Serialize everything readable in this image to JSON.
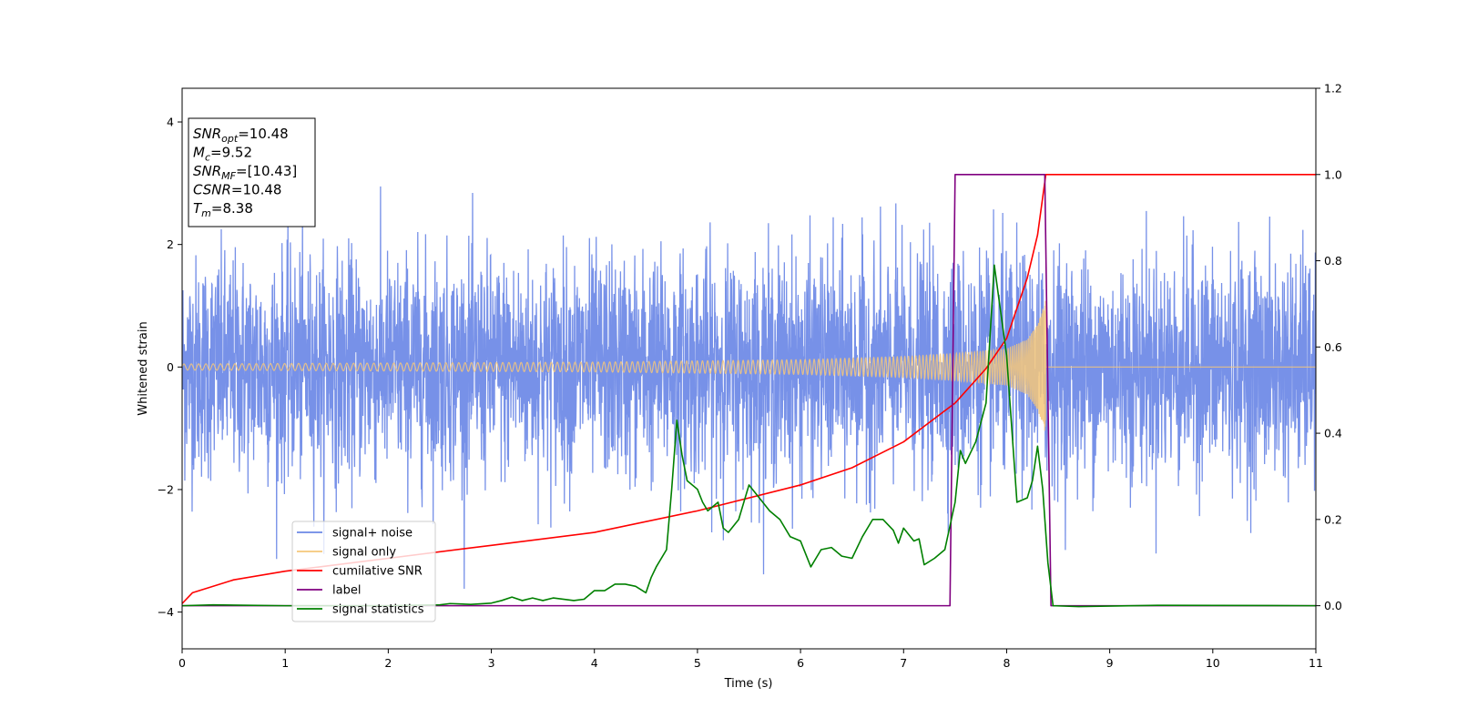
{
  "chart_data": {
    "type": "line",
    "xlabel": "Time (s)",
    "ylabel": "Whitened strain",
    "xlim": [
      0,
      11
    ],
    "ylim": [
      -4.6,
      4.55
    ],
    "y2lim": [
      -0.1,
      1.2
    ],
    "xticks": [
      0,
      1,
      2,
      3,
      4,
      5,
      6,
      7,
      8,
      9,
      10,
      11
    ],
    "yticks": [
      -4,
      -2,
      0,
      2,
      4
    ],
    "y2ticks": [
      0.0,
      0.2,
      0.4,
      0.6,
      0.8,
      1.0,
      1.2
    ],
    "y2tick_labels": [
      "0.0",
      "0.2",
      "0.4",
      "0.6",
      "0.8",
      "1.0",
      "1.2"
    ],
    "grid": false,
    "legend_position": "lower-left",
    "annotation": {
      "lines": [
        {
          "base": "SNR",
          "sub": "opt",
          "value": "=10.48"
        },
        {
          "base": "M",
          "sub": "c",
          "value": "=9.52"
        },
        {
          "base": "SNR",
          "sub": "MF",
          "value": "=[10.43]"
        },
        {
          "base": "CSNR",
          "sub": "",
          "value": "=10.48"
        },
        {
          "base": "T",
          "sub": "m",
          "value": "=8.38"
        }
      ]
    },
    "series": [
      {
        "name": "signal+ noise",
        "axis": "left",
        "color": "#6b88e6",
        "kind": "noise-band",
        "description_values": {
          "typical_amplitude": 1.2,
          "peak_max": 3.6,
          "peak_min": -4.15
        }
      },
      {
        "name": "signal only",
        "axis": "left",
        "color": "#f5c77a",
        "kind": "chirp",
        "t_merge": 8.38,
        "amplitude_points": {
          "x": [
            0,
            4,
            6,
            7,
            7.5,
            8.0,
            8.2,
            8.3,
            8.38
          ],
          "y": [
            0.05,
            0.08,
            0.12,
            0.17,
            0.22,
            0.3,
            0.45,
            0.7,
            1.1
          ]
        }
      },
      {
        "name": "cumilative SNR",
        "axis": "right",
        "color": "#ff0000",
        "x": [
          0.0,
          0.1,
          0.5,
          1.0,
          2.0,
          3.0,
          4.0,
          5.0,
          6.0,
          6.5,
          7.0,
          7.5,
          7.8,
          8.0,
          8.2,
          8.3,
          8.38,
          11.0
        ],
        "y": [
          0.005,
          0.03,
          0.06,
          0.08,
          0.11,
          0.14,
          0.17,
          0.22,
          0.28,
          0.32,
          0.38,
          0.47,
          0.55,
          0.62,
          0.76,
          0.86,
          1.0,
          1.0
        ]
      },
      {
        "name": "label",
        "axis": "right",
        "color": "#800080",
        "x": [
          0.0,
          7.45,
          7.5,
          8.37,
          8.43,
          11.0
        ],
        "y": [
          0.0,
          0.0,
          1.0,
          1.0,
          0.0,
          0.0
        ]
      },
      {
        "name": "signal statistics",
        "axis": "right",
        "color": "#008000",
        "x": [
          0.0,
          0.3,
          1.0,
          2.0,
          2.5,
          2.6,
          2.8,
          3.0,
          3.1,
          3.2,
          3.3,
          3.4,
          3.5,
          3.6,
          3.8,
          3.9,
          4.0,
          4.1,
          4.2,
          4.3,
          4.4,
          4.5,
          4.55,
          4.6,
          4.7,
          4.75,
          4.8,
          4.85,
          4.9,
          5.0,
          5.05,
          5.1,
          5.2,
          5.25,
          5.3,
          5.4,
          5.5,
          5.6,
          5.7,
          5.8,
          5.9,
          6.0,
          6.1,
          6.2,
          6.3,
          6.4,
          6.5,
          6.6,
          6.7,
          6.8,
          6.9,
          6.95,
          7.0,
          7.1,
          7.15,
          7.2,
          7.3,
          7.4,
          7.5,
          7.55,
          7.6,
          7.7,
          7.8,
          7.88,
          8.0,
          8.1,
          8.2,
          8.25,
          8.3,
          8.35,
          8.4,
          8.45,
          8.7,
          9.5,
          11.0
        ],
        "y": [
          0.0,
          0.002,
          0.0,
          0.0,
          0.002,
          0.005,
          0.003,
          0.006,
          0.012,
          0.02,
          0.012,
          0.018,
          0.012,
          0.018,
          0.012,
          0.015,
          0.035,
          0.035,
          0.05,
          0.05,
          0.045,
          0.03,
          0.065,
          0.09,
          0.13,
          0.27,
          0.43,
          0.35,
          0.29,
          0.27,
          0.24,
          0.22,
          0.24,
          0.18,
          0.17,
          0.2,
          0.28,
          0.25,
          0.22,
          0.2,
          0.16,
          0.15,
          0.09,
          0.13,
          0.135,
          0.115,
          0.11,
          0.16,
          0.2,
          0.2,
          0.175,
          0.145,
          0.18,
          0.15,
          0.155,
          0.095,
          0.11,
          0.13,
          0.24,
          0.36,
          0.33,
          0.38,
          0.47,
          0.79,
          0.58,
          0.24,
          0.25,
          0.29,
          0.37,
          0.27,
          0.1,
          0.0,
          -0.002,
          0.001,
          0.0
        ]
      }
    ]
  }
}
